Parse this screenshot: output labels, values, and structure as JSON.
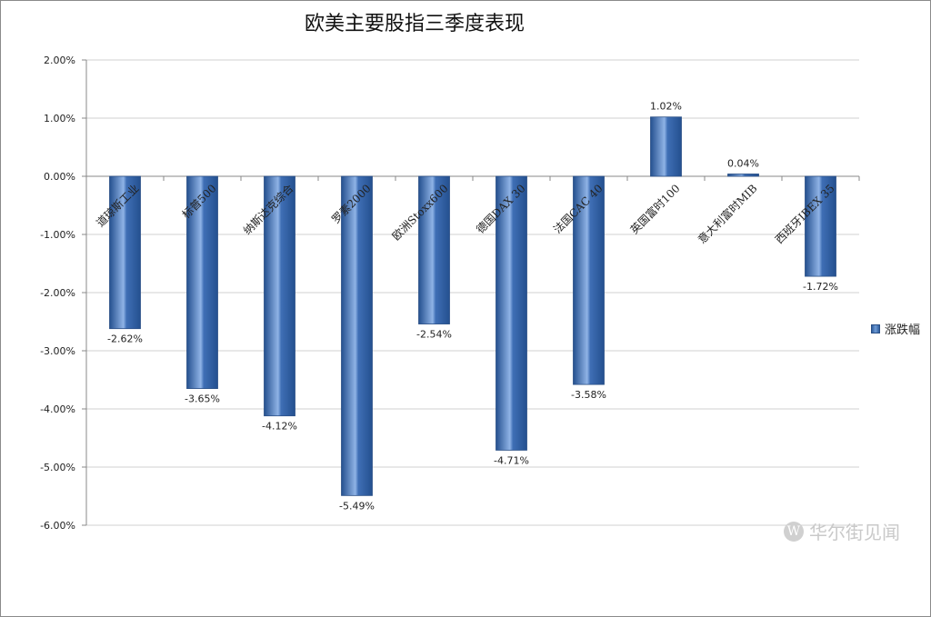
{
  "chart_data": {
    "type": "bar",
    "title": "欧美主要股指三季度表现",
    "categories": [
      "道琼斯工业",
      "标普500",
      "纳斯达克综合",
      "罗素2000",
      "欧洲Stoxx600",
      "德国DAX 30",
      "法国CAC 40",
      "英国富时100",
      "意大利富时MIB",
      "西班牙IBEX 35"
    ],
    "series": [
      {
        "name": "涨跌幅",
        "values": [
          -2.62,
          -3.65,
          -4.12,
          -5.49,
          -2.54,
          -4.71,
          -3.58,
          1.02,
          0.04,
          -1.72
        ]
      }
    ],
    "data_labels": [
      "-2.62%",
      "-3.65%",
      "-4.12%",
      "-5.49%",
      "-2.54%",
      "-4.71%",
      "-3.58%",
      "1.02%",
      "0.04%",
      "-1.72%"
    ],
    "yticks": [
      "2.00%",
      "1.00%",
      "0.00%",
      "-1.00%",
      "-2.00%",
      "-3.00%",
      "-4.00%",
      "-5.00%",
      "-6.00%"
    ],
    "ylim": [
      -6,
      2
    ],
    "grid": true,
    "legend_position": "right",
    "colors": {
      "bar": "#3f6fb5",
      "bar_dark": "#24508f",
      "bar_light": "#8fb3e6",
      "grid": "#d0d0d0"
    }
  },
  "watermark": {
    "logo": "W",
    "text": "华尔街见闻"
  }
}
